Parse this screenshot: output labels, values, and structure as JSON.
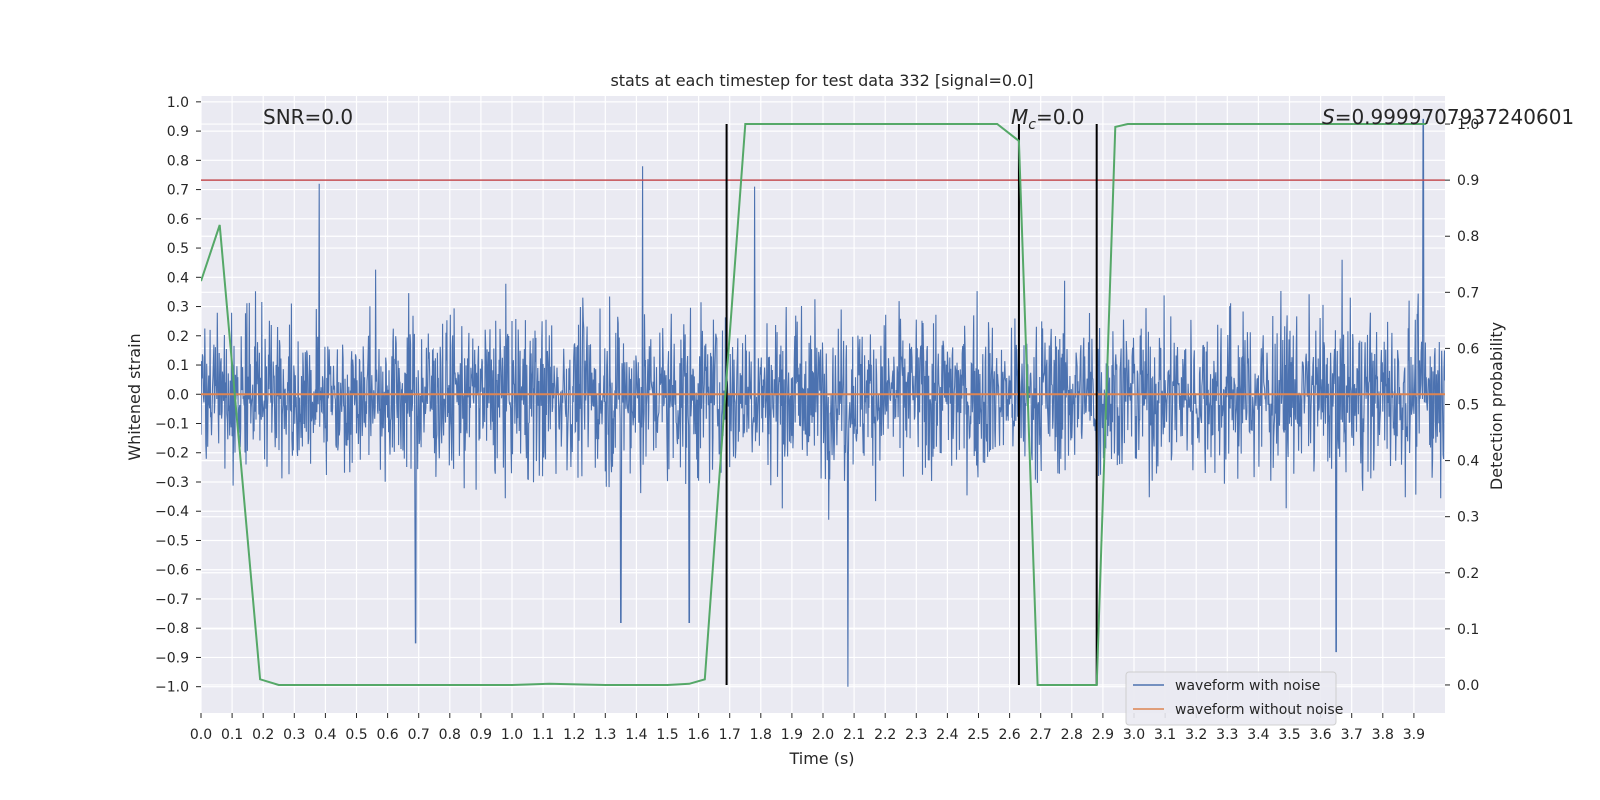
{
  "chart_data": {
    "type": "line",
    "title": "stats at each timestep for test data 332 [signal=0.0]",
    "xlabel": "Time (s)",
    "ylabel": "Whitened strain",
    "y2label": "Detection probability",
    "xlim": [
      0.0,
      4.0
    ],
    "ylim": [
      -1.09,
      1.02
    ],
    "y2lim": [
      -0.05,
      1.05
    ],
    "grid": true,
    "background": "#eaeaf2",
    "x_ticks": [
      "0.0",
      "0.1",
      "0.2",
      "0.3",
      "0.4",
      "0.5",
      "0.6",
      "0.7",
      "0.8",
      "0.9",
      "1.0",
      "1.1",
      "1.2",
      "1.3",
      "1.4",
      "1.5",
      "1.6",
      "1.7",
      "1.8",
      "1.9",
      "2.0",
      "2.1",
      "2.2",
      "2.3",
      "2.4",
      "2.5",
      "2.6",
      "2.7",
      "2.8",
      "2.9",
      "3.0",
      "3.1",
      "3.2",
      "3.3",
      "3.4",
      "3.5",
      "3.6",
      "3.7",
      "3.8",
      "3.9"
    ],
    "y_ticks": [
      "1.0",
      "0.9",
      "0.8",
      "0.7",
      "0.6",
      "0.5",
      "0.4",
      "0.3",
      "0.2",
      "0.1",
      "0.0",
      "−0.1",
      "−0.2",
      "−0.3",
      "−0.4",
      "−0.5",
      "−0.6",
      "−0.7",
      "−0.8",
      "−0.9",
      "−1.0"
    ],
    "y2_ticks": [
      "1.0",
      "0.9",
      "0.8",
      "0.7",
      "0.6",
      "0.5",
      "0.4",
      "0.3",
      "0.2",
      "0.1",
      "0.0"
    ],
    "annotations": {
      "snr": "SNR=0.0",
      "mc_symbol": "M",
      "mc_sub": "c",
      "mc_value": "=0.0",
      "s_symbol": "S",
      "s_value": "=0.9999707937240601"
    },
    "threshold_probability": 0.9,
    "vertical_lines_x": [
      1.69,
      2.63,
      2.88
    ],
    "legend": {
      "position": "lower-right",
      "entries": [
        {
          "label": "waveform with noise",
          "color": "#4c72b0"
        },
        {
          "label": "waveform without noise",
          "color": "#dd8452"
        }
      ]
    },
    "series": [
      {
        "name": "waveform with noise",
        "axis": "left",
        "color": "#4c72b0",
        "description": "dense whitened-noise trace, 2048 samples/s, approximate amplitude envelope reproduced",
        "envelope": {
          "typical_abs": 0.4,
          "max": 0.94,
          "min": -1.0
        },
        "peaks": [
          {
            "x": 0.38,
            "y": 0.72
          },
          {
            "x": 1.42,
            "y": 0.78
          },
          {
            "x": 1.78,
            "y": 0.71
          },
          {
            "x": 3.93,
            "y": 0.94
          },
          {
            "x": 2.08,
            "y": -1.0
          },
          {
            "x": 0.69,
            "y": -0.85
          },
          {
            "x": 3.65,
            "y": -0.88
          },
          {
            "x": 1.35,
            "y": -0.78
          },
          {
            "x": 1.57,
            "y": -0.78
          }
        ]
      },
      {
        "name": "waveform without noise",
        "axis": "left",
        "color": "#dd8452",
        "x": [
          0.0,
          4.0
        ],
        "y": [
          0.0,
          0.0
        ]
      },
      {
        "axis": "right",
        "color": "#55a868",
        "x": [
          0.0,
          0.06,
          0.19,
          0.25,
          1.0,
          1.12,
          1.3,
          1.5,
          1.57,
          1.62,
          1.69,
          1.75,
          2.56,
          2.63,
          2.69,
          2.75,
          2.82,
          2.88,
          2.94,
          2.98,
          3.1,
          3.94
        ],
        "y": [
          0.72,
          0.82,
          0.01,
          0.0,
          0.0,
          0.002,
          0.0,
          0.0,
          0.002,
          0.01,
          0.55,
          1.0,
          1.0,
          0.97,
          0.0,
          0.0,
          0.0,
          0.0,
          0.995,
          1.0,
          1.0,
          1.0
        ]
      }
    ]
  }
}
